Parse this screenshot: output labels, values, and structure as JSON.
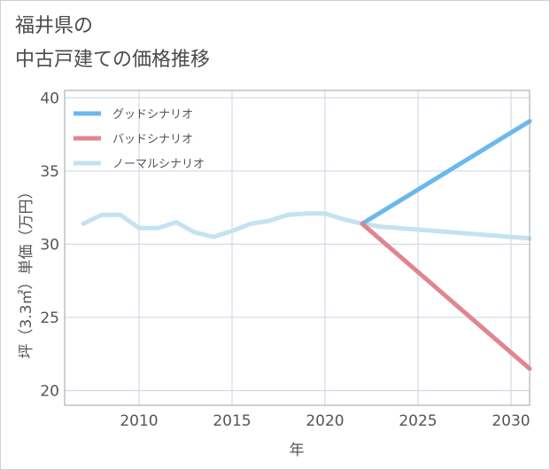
{
  "title_line1": "福井県の",
  "title_line2": "中古戸建ての価格推移",
  "chart_data": {
    "type": "line",
    "xlabel": "年",
    "ylabel": "坪（3.3㎡）単価（万円）",
    "xlim": [
      2006,
      2031
    ],
    "ylim": [
      19,
      40.5
    ],
    "xticks": [
      2010,
      2015,
      2020,
      2025,
      2030
    ],
    "yticks": [
      20,
      25,
      30,
      35,
      40
    ],
    "grid": true,
    "legend_position": "top-left",
    "series": [
      {
        "name": "グッドシナリオ",
        "color": "#6ab8ee",
        "points": [
          [
            2022,
            31.4
          ],
          [
            2031,
            38.4
          ]
        ]
      },
      {
        "name": "バッドシナリオ",
        "color": "#e0868e",
        "points": [
          [
            2022,
            31.4
          ],
          [
            2031,
            21.5
          ]
        ]
      },
      {
        "name": "ノーマルシナリオ",
        "color": "#c4e2f0",
        "points": [
          [
            2007,
            31.4
          ],
          [
            2008,
            32.0
          ],
          [
            2009,
            32.0
          ],
          [
            2010,
            31.1
          ],
          [
            2011,
            31.1
          ],
          [
            2012,
            31.5
          ],
          [
            2013,
            30.8
          ],
          [
            2014,
            30.5
          ],
          [
            2015,
            30.9
          ],
          [
            2016,
            31.4
          ],
          [
            2017,
            31.6
          ],
          [
            2018,
            32.0
          ],
          [
            2019,
            32.1
          ],
          [
            2020,
            32.1
          ],
          [
            2021,
            31.7
          ],
          [
            2022,
            31.4
          ],
          [
            2023,
            31.2
          ],
          [
            2025,
            31.0
          ],
          [
            2027,
            30.8
          ],
          [
            2029,
            30.6
          ],
          [
            2031,
            30.4
          ]
        ]
      }
    ]
  }
}
